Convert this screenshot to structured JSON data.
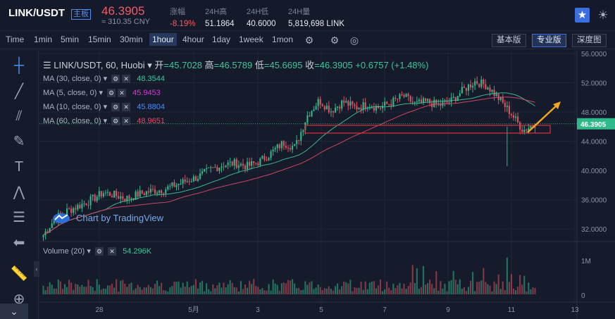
{
  "header": {
    "pair": "LINK/USDT",
    "badge": "主板",
    "price": "46.3905",
    "cny": "≈ 310.35 CNY",
    "stats": [
      {
        "label": "涨幅",
        "value": "-8.19%",
        "red": true
      },
      {
        "label": "24H高",
        "value": "51.1864"
      },
      {
        "label": "24H低",
        "value": "40.6000"
      },
      {
        "label": "24H量",
        "value": "5,819,698 LINK"
      }
    ],
    "star_icon": "star-icon",
    "theme_icon": "sun-icon"
  },
  "toolbar": {
    "timeframes": [
      "Time",
      "1min",
      "5min",
      "15min",
      "30min",
      "1hour",
      "4hour",
      "1day",
      "1week",
      "1mon"
    ],
    "active_timeframe": "1hour",
    "views": [
      "基本版",
      "专业版",
      "深度图"
    ],
    "active_view": "专业版"
  },
  "chart": {
    "symbol_line": "LINK/USDT, 60, Huobi",
    "ohlc": {
      "open_label": "开",
      "open": "45.7028",
      "high_label": "高",
      "high": "46.5789",
      "low_label": "低",
      "low": "45.6695",
      "close_label": "收",
      "close": "46.3905",
      "change": "+0.6757 (+1.48%)"
    },
    "ma": [
      {
        "label": "MA (30, close, 0)",
        "value": "48.3544",
        "color": "#3fc59a"
      },
      {
        "label": "MA (5, close, 0)",
        "value": "45.9453",
        "color": "#d13fd1"
      },
      {
        "label": "MA (10, close, 0)",
        "value": "45.8804",
        "color": "#4d8ff7"
      },
      {
        "label": "MA (60, close, 0)",
        "value": "48.9651",
        "color": "#e04a6a"
      }
    ],
    "volume": {
      "label": "Volume (20)",
      "value": "54.296K"
    },
    "watermark": "Chart by TradingView",
    "price_axis": [
      "56.0000",
      "52.0000",
      "48.0000",
      "44.0000",
      "40.0000",
      "36.0000",
      "32.0000"
    ],
    "current_price_tag": "46.3905",
    "volume_axis": [
      "1M",
      "0"
    ],
    "time_axis": [
      "28",
      "5月",
      "3",
      "5",
      "7",
      "9",
      "11",
      "13"
    ]
  },
  "colors": {
    "up": "#2fb88a",
    "down": "#e0505f",
    "accent": "#3b6fe0"
  },
  "chart_data": {
    "type": "candlestick",
    "title": "LINK/USDT, 60, Huobi",
    "x_ticks": [
      "28",
      "5月",
      "3",
      "5",
      "7",
      "9",
      "11",
      "13"
    ],
    "ylim": [
      30,
      56
    ],
    "close_path": [
      31.2,
      33.5,
      34.5,
      35.2,
      36.0,
      37.0,
      36.6,
      36.2,
      36.8,
      37.2,
      37.4,
      38.0,
      38.6,
      39.2,
      40.2,
      40.8,
      41.0,
      40.6,
      41.2,
      42.4,
      43.8,
      43.2,
      47.5,
      49.6,
      48.2,
      49.4,
      48.6,
      49.0,
      48.6,
      49.3,
      50.2,
      49.1,
      49.4,
      48.9,
      49.5,
      51.0,
      52.2,
      51.6,
      49.8,
      47.8,
      45.5,
      46.4
    ],
    "volume_peak": "1M"
  }
}
